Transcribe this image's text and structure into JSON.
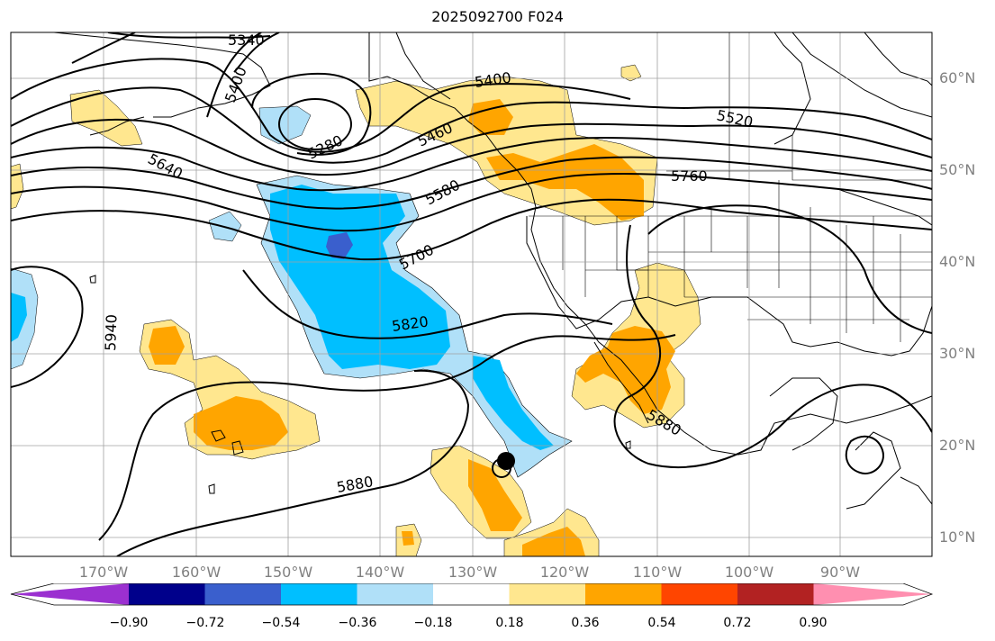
{
  "title": "2025092700 F024",
  "lon_labels": [
    "170°W",
    "160°W",
    "150°W",
    "140°W",
    "130°W",
    "120°W",
    "110°W",
    "100°W",
    "90°W"
  ],
  "lat_labels": [
    "60°N",
    "50°N",
    "40°N",
    "30°N",
    "20°N",
    "10°N"
  ],
  "contour_labels": [
    "5340",
    "5400",
    "5520",
    "5280",
    "5460",
    "5640",
    "5580",
    "5760",
    "5700",
    "5820",
    "5940",
    "5880",
    "5880",
    "5400"
  ],
  "colorbar": {
    "ticks": [
      "−0.90",
      "−0.72",
      "−0.54",
      "−0.36",
      "−0.18",
      "0.18",
      "0.36",
      "0.54",
      "0.72",
      "0.90"
    ],
    "colors": [
      "#9b30d0",
      "#00008b",
      "#3a5fcd",
      "#00bfff",
      "#b0e0f8",
      "#ffffff",
      "#ffe78f",
      "#ffa500",
      "#ff4500",
      "#b22222",
      "#ff8fb0"
    ]
  },
  "storm_marker": "tropical-cyclone-icon"
}
